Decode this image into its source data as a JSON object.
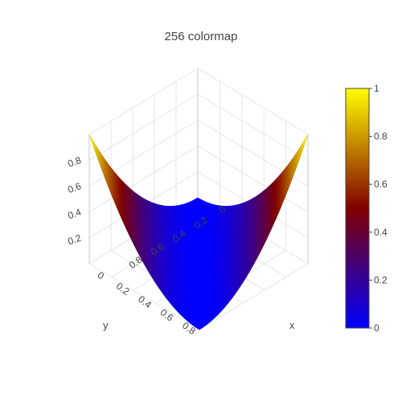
{
  "chart_data": {
    "type": "surface",
    "title": "256 colormap",
    "z_function": "x^2 + y^2 - 2xy (saddle, corners high at x≠y)",
    "x_axis": {
      "label": "x",
      "ticks": [
        "0",
        "0.2",
        "0.4",
        "0.6",
        "0.8"
      ],
      "range": [
        0,
        1
      ]
    },
    "y_axis": {
      "label": "y",
      "ticks": [
        "0",
        "0.2",
        "0.4",
        "0.6",
        "0.8"
      ],
      "range": [
        0,
        1
      ]
    },
    "z_axis": {
      "label": "",
      "ticks": [
        "0.2",
        "0.4",
        "0.6",
        "0.8"
      ],
      "range": [
        0,
        1
      ]
    },
    "colorbar": {
      "ticks": [
        "0",
        "0.2",
        "0.4",
        "0.6",
        "0.8",
        "1"
      ],
      "range": [
        0,
        1
      ],
      "colorscale": [
        {
          "value": 0,
          "color": "#0000ff"
        },
        {
          "value": 0.5,
          "color": "#800000"
        },
        {
          "value": 1,
          "color": "#ffff00"
        }
      ]
    }
  }
}
